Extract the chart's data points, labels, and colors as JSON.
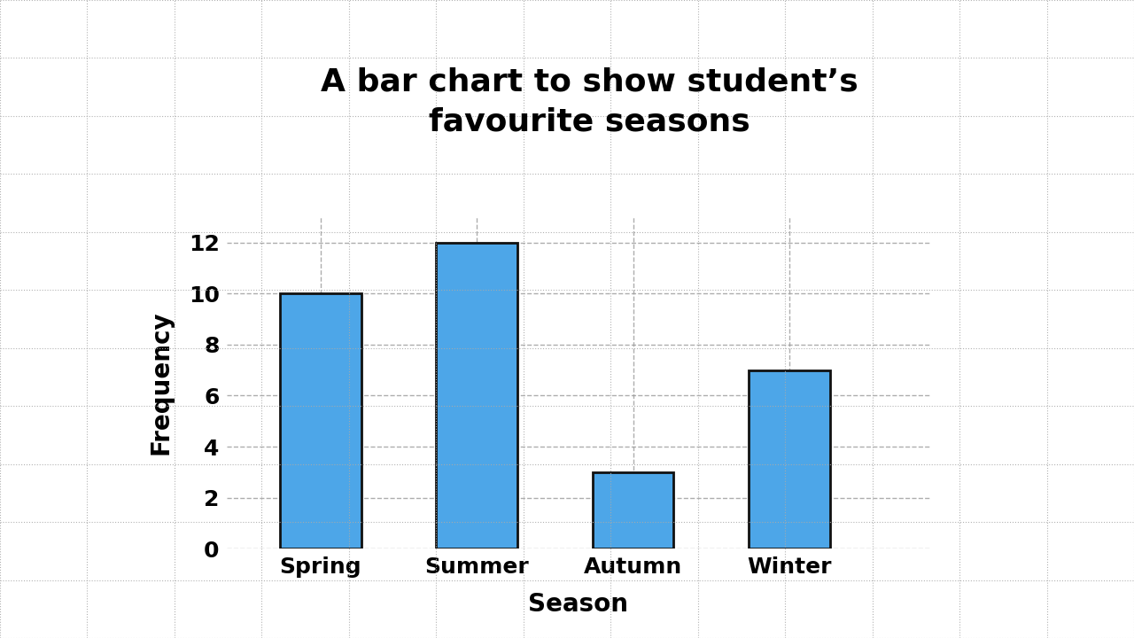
{
  "title": "A bar chart to show student’s\nfavourite seasons",
  "xlabel": "Season",
  "ylabel": "Frequency",
  "categories": [
    "Spring",
    "Summer",
    "Autumn",
    "Winter"
  ],
  "values": [
    10,
    12,
    3,
    7
  ],
  "bar_color": "#4da6e8",
  "bar_edge_color": "#111111",
  "bar_edge_width": 2.0,
  "ylim": [
    0,
    13
  ],
  "yticks": [
    0,
    2,
    4,
    6,
    8,
    10,
    12
  ],
  "background_color": "#ffffff",
  "grid_color": "#aaaaaa",
  "title_fontsize": 26,
  "axis_label_fontsize": 20,
  "tick_fontsize": 18,
  "bar_width": 0.52
}
